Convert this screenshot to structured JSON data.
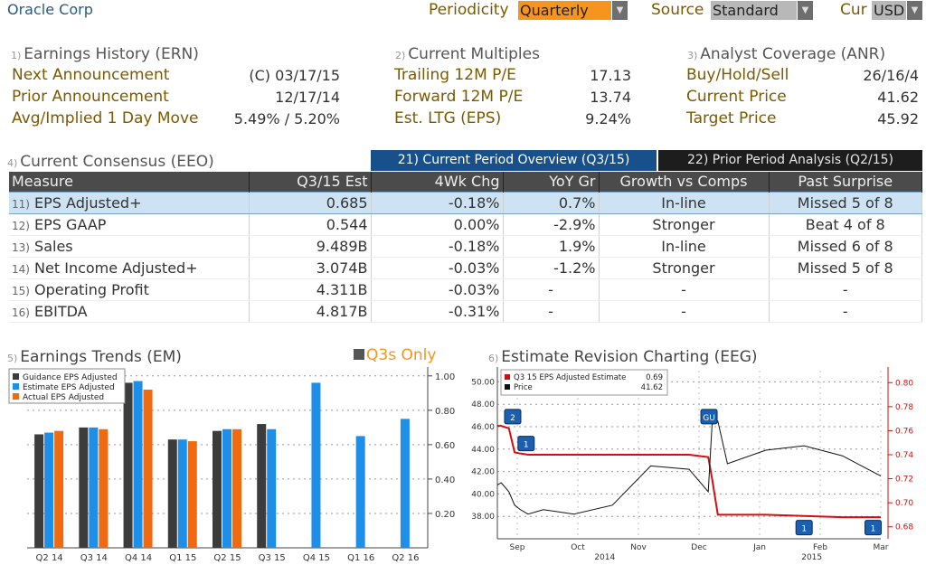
{
  "header": {
    "company": "Oracle Corp",
    "periodicity_label": "Periodicity",
    "periodicity_value": "Quarterly",
    "source_label": "Source",
    "source_value": "Standard",
    "cur_label": "Cur",
    "cur_value": "USD"
  },
  "earnings_history": {
    "num": "1)",
    "title": "Earnings History (ERN)",
    "rows": [
      {
        "label": "Next Announcement",
        "value": "(C)  03/17/15"
      },
      {
        "label": "Prior Announcement",
        "value": "12/17/14"
      },
      {
        "label": "Avg/Implied 1 Day Move",
        "value": "5.49% / 5.20%"
      }
    ]
  },
  "current_multiples": {
    "num": "2)",
    "title": "Current Multiples",
    "rows": [
      {
        "label": "Trailing 12M P/E",
        "value": "17.13"
      },
      {
        "label": "Forward 12M P/E",
        "value": "13.74"
      },
      {
        "label": "Est. LTG (EPS)",
        "value": "9.24%"
      }
    ]
  },
  "analyst_coverage": {
    "num": "3)",
    "title": "Analyst Coverage (ANR)",
    "rows": [
      {
        "label": "Buy/Hold/Sell",
        "value": "26/16/4"
      },
      {
        "label": "Current Price",
        "value": "41.62"
      },
      {
        "label": "Target Price",
        "value": "45.92"
      }
    ]
  },
  "consensus": {
    "num": "4)",
    "title": "Current Consensus (EEO)",
    "tabs": [
      {
        "label": "21) Current Period Overview (Q3/15)"
      },
      {
        "label": "22) Prior Period Analysis (Q2/15)"
      }
    ],
    "columns": [
      "Measure",
      "Q3/15 Est",
      "4Wk Chg",
      "YoY Gr",
      "Growth vs Comps",
      "Past Surprise"
    ],
    "rows": [
      {
        "n": "11)",
        "measure": "EPS Adjusted+",
        "est": "0.685",
        "chg": "-0.18%",
        "yoy": "0.7%",
        "growth": "In-line",
        "surprise": "Missed 5 of 8"
      },
      {
        "n": "12)",
        "measure": "EPS GAAP",
        "est": "0.544",
        "chg": "0.00%",
        "yoy": "-2.9%",
        "growth": "Stronger",
        "surprise": "Beat 4 of 8"
      },
      {
        "n": "13)",
        "measure": "Sales",
        "est": "9.489B",
        "chg": "-0.18%",
        "yoy": "1.9%",
        "growth": "In-line",
        "surprise": "Missed 6 of 8"
      },
      {
        "n": "14)",
        "measure": "Net Income Adjusted+",
        "est": "3.074B",
        "chg": "-0.03%",
        "yoy": "-1.2%",
        "growth": "Stronger",
        "surprise": "Missed 5 of 8"
      },
      {
        "n": "15)",
        "measure": "Operating Profit",
        "est": "4.311B",
        "chg": "-0.03%",
        "yoy": "-",
        "growth": "-",
        "surprise": "-"
      },
      {
        "n": "16)",
        "measure": "EBITDA",
        "est": "4.817B",
        "chg": "-0.31%",
        "yoy": "-",
        "growth": "-",
        "surprise": "-"
      }
    ]
  },
  "earnings_trends_panel": {
    "num": "5)",
    "title": "Earnings Trends (EM)",
    "toggle_label": "Q3s Only"
  },
  "revision_panel": {
    "num": "6)",
    "title": "Estimate Revision Charting (EEG)"
  },
  "colors": {
    "guidance": "#3c3c3c",
    "estimate": "#1e8fe8",
    "actual": "#f06a12",
    "eps_line": "#d01010",
    "price_line": "#111111",
    "accent_orange": "#f7941d",
    "tab_blue": "#17508a"
  },
  "chart_data": [
    {
      "type": "bar",
      "categories": [
        "Q2 14",
        "Q3 14",
        "Q4 14",
        "Q1 15",
        "Q2 15",
        "Q3 15",
        "Q4 15",
        "Q1 16",
        "Q2 16"
      ],
      "series": [
        {
          "name": "Guidance EPS Adjusted",
          "values": [
            0.66,
            0.7,
            0.96,
            0.63,
            0.68,
            0.72,
            null,
            null,
            null
          ]
        },
        {
          "name": "Estimate EPS Adjusted",
          "values": [
            0.67,
            0.7,
            0.97,
            0.63,
            0.69,
            0.69,
            0.96,
            0.65,
            0.75
          ]
        },
        {
          "name": "Actual EPS Adjusted",
          "values": [
            0.68,
            0.69,
            0.92,
            0.62,
            0.69,
            null,
            null,
            null,
            null
          ]
        }
      ],
      "yticks": [
        "0.20",
        "0.40",
        "0.60",
        "0.80",
        "1.00"
      ],
      "ylim": [
        0.0,
        1.02
      ],
      "legend": "top-left",
      "grid": true
    },
    {
      "type": "line",
      "legend_entries": [
        {
          "label": "Q3 15 EPS Adjusted Estimate",
          "value": "0.69"
        },
        {
          "label": "Price",
          "value": "41.62"
        }
      ],
      "x_months": [
        "Sep",
        "Oct",
        "Nov",
        "Dec",
        "Jan",
        "Feb",
        "Mar"
      ],
      "x_years": [
        "2014",
        "2015"
      ],
      "left_axis": {
        "ticks": [
          "38.00",
          "40.00",
          "42.00",
          "44.00",
          "46.00",
          "48.00",
          "50.00"
        ],
        "ylim": [
          36.0,
          51.0
        ]
      },
      "right_axis": {
        "ticks": [
          "0.68",
          "0.70",
          "0.72",
          "0.74",
          "0.76",
          "0.78",
          "0.80"
        ],
        "ylim": [
          0.67,
          0.81
        ]
      },
      "x": [
        0,
        0.01,
        0.03,
        0.045,
        0.06,
        0.08,
        0.12,
        0.2,
        0.3,
        0.4,
        0.5,
        0.55,
        0.56,
        0.575,
        0.6,
        0.7,
        0.8,
        0.9,
        1
      ],
      "series": [
        {
          "name": "Q3 15 EPS Adjusted Estimate",
          "axis": "right",
          "values": [
            0.764,
            0.764,
            0.762,
            0.742,
            0.741,
            0.74,
            0.74,
            0.74,
            0.74,
            0.74,
            0.74,
            0.738,
            0.72,
            0.69,
            0.69,
            0.69,
            0.689,
            0.688,
            0.688
          ]
        },
        {
          "name": "Price",
          "axis": "left",
          "values": [
            40.8,
            41.0,
            40.2,
            39.0,
            38.6,
            38.2,
            38.6,
            38.2,
            39.0,
            42.5,
            42.2,
            40.2,
            46.2,
            46.5,
            42.7,
            43.9,
            44.3,
            43.4,
            41.6
          ]
        }
      ],
      "markers": [
        {
          "label": "2",
          "x": 0.04,
          "y": 46.9
        },
        {
          "label": "1",
          "x": 0.075,
          "y": 44.5
        },
        {
          "label": "GU",
          "x": 0.552,
          "y": 46.9
        },
        {
          "label": "1",
          "x": 0.8,
          "y": 37.0
        },
        {
          "label": "1",
          "x": 0.98,
          "y": 37.0
        }
      ],
      "legend": "top-left",
      "grid": true
    }
  ]
}
